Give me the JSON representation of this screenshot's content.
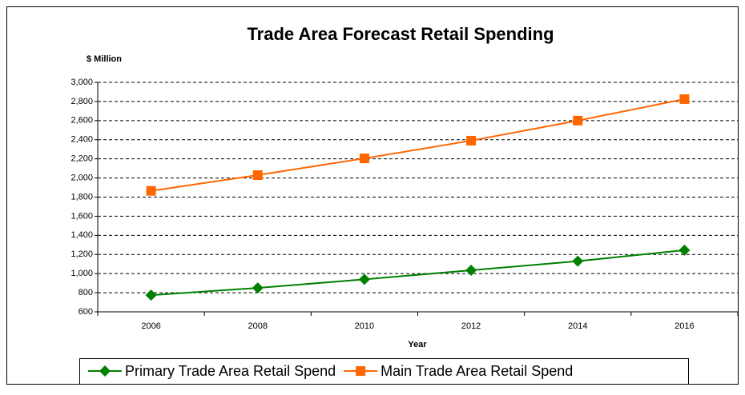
{
  "chart_data": {
    "type": "line",
    "title": "Trade Area Forecast Retail Spending",
    "y_label": "$ Million",
    "x_label": "Year",
    "categories": [
      "2006",
      "2008",
      "2010",
      "2012",
      "2014",
      "2016"
    ],
    "series": [
      {
        "name": "Primary Trade Area Retail Spend",
        "color": "#008000",
        "marker": "diamond",
        "values": [
          775,
          850,
          940,
          1035,
          1130,
          1245
        ]
      },
      {
        "name": "Main Trade Area Retail Spend",
        "color": "#ff6600",
        "marker": "square",
        "values": [
          1865,
          2030,
          2205,
          2390,
          2600,
          2825
        ]
      }
    ],
    "ylim": [
      600,
      3000
    ],
    "yticks": [
      600,
      800,
      {
        "value": 1000,
        "label": "1,000"
      },
      {
        "value": 1200,
        "label": "1,200"
      },
      {
        "value": 1400,
        "label": "1,400"
      },
      {
        "value": 1600,
        "label": "1,600"
      },
      {
        "value": 1800,
        "label": "1,800"
      },
      {
        "value": 2000,
        "label": "2,000"
      },
      {
        "value": 2200,
        "label": "2,200"
      },
      {
        "value": 2400,
        "label": "2,400"
      },
      {
        "value": 2600,
        "label": "2,600"
      },
      {
        "value": 2800,
        "label": "2,800"
      },
      {
        "value": 3000,
        "label": "3,000"
      }
    ],
    "grid": true,
    "legend": "bottom"
  }
}
